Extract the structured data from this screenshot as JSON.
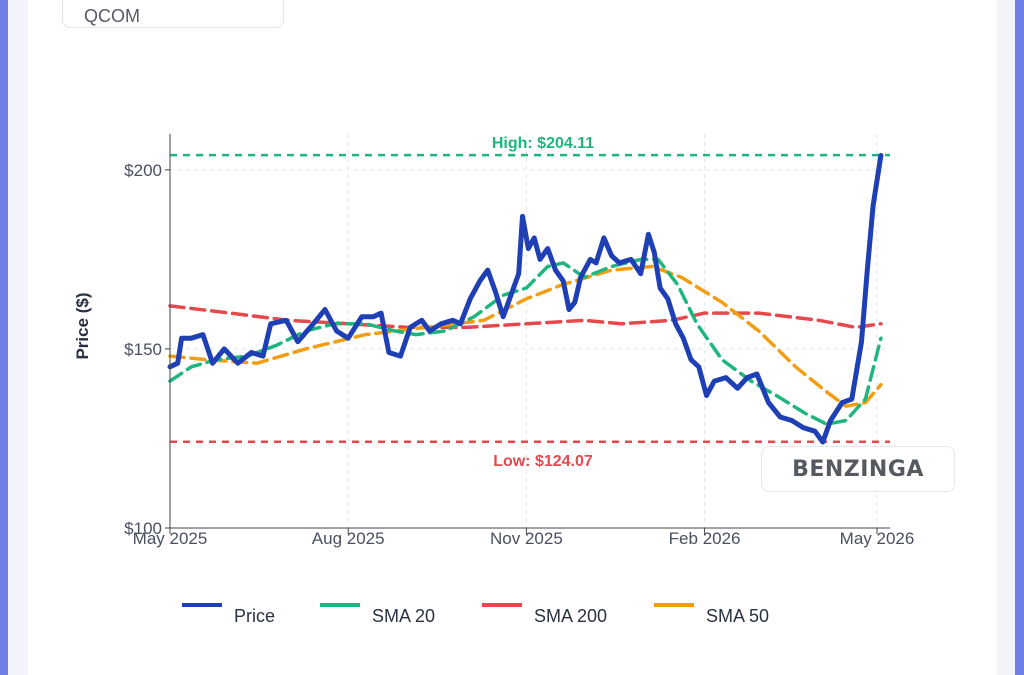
{
  "ticker": "QCOM",
  "watermark": "BENZINGA",
  "chart_data": {
    "type": "line",
    "title": "",
    "xlabel": "",
    "ylabel": "Price ($)",
    "x_start": "2025-05-01",
    "x_end": "2026-05-01",
    "ylim": [
      100,
      210
    ],
    "y_ticks": [
      100,
      150,
      200
    ],
    "y_tick_labels": [
      "$100",
      "$150",
      "$200"
    ],
    "x_ticks": [
      "2025-05-01",
      "2025-08-01",
      "2025-11-01",
      "2026-02-01",
      "2026-05-01"
    ],
    "x_tick_labels": [
      "May 2025",
      "Aug 2025",
      "Nov 2025",
      "Feb 2026",
      "May 2026"
    ],
    "grid": true,
    "legend_position": "bottom",
    "high": {
      "value": 204.11,
      "label": "High: $204.11",
      "color": "#1fb57f"
    },
    "low": {
      "value": 124.07,
      "label": "Low: $124.07",
      "color": "#e5484d"
    },
    "series": [
      {
        "name": "Price",
        "color": "#1f3fb4",
        "points": [
          [
            "2025-05-01",
            145
          ],
          [
            "2025-05-05",
            146
          ],
          [
            "2025-05-07",
            153
          ],
          [
            "2025-05-12",
            153
          ],
          [
            "2025-05-18",
            154
          ],
          [
            "2025-05-23",
            146
          ],
          [
            "2025-05-29",
            150
          ],
          [
            "2025-06-05",
            146
          ],
          [
            "2025-06-12",
            149
          ],
          [
            "2025-06-18",
            148
          ],
          [
            "2025-06-22",
            157
          ],
          [
            "2025-06-30",
            158
          ],
          [
            "2025-07-06",
            152
          ],
          [
            "2025-07-14",
            157
          ],
          [
            "2025-07-20",
            161
          ],
          [
            "2025-07-26",
            155
          ],
          [
            "2025-08-01",
            153
          ],
          [
            "2025-08-08",
            159
          ],
          [
            "2025-08-14",
            159
          ],
          [
            "2025-08-18",
            160
          ],
          [
            "2025-08-22",
            149
          ],
          [
            "2025-08-28",
            148
          ],
          [
            "2025-09-02",
            156
          ],
          [
            "2025-09-08",
            158
          ],
          [
            "2025-09-12",
            155
          ],
          [
            "2025-09-18",
            157
          ],
          [
            "2025-09-24",
            158
          ],
          [
            "2025-09-28",
            157
          ],
          [
            "2025-10-03",
            164
          ],
          [
            "2025-10-08",
            169
          ],
          [
            "2025-10-12",
            172
          ],
          [
            "2025-10-16",
            166
          ],
          [
            "2025-10-20",
            159
          ],
          [
            "2025-10-24",
            165
          ],
          [
            "2025-10-28",
            171
          ],
          [
            "2025-10-30",
            187
          ],
          [
            "2025-11-02",
            178
          ],
          [
            "2025-11-05",
            181
          ],
          [
            "2025-11-08",
            175
          ],
          [
            "2025-11-12",
            178
          ],
          [
            "2025-11-16",
            172
          ],
          [
            "2025-11-20",
            169
          ],
          [
            "2025-11-23",
            161
          ],
          [
            "2025-11-26",
            163
          ],
          [
            "2025-11-29",
            170
          ],
          [
            "2025-12-04",
            175
          ],
          [
            "2025-12-07",
            174
          ],
          [
            "2025-12-11",
            181
          ],
          [
            "2025-12-15",
            176
          ],
          [
            "2025-12-19",
            174
          ],
          [
            "2025-12-25",
            175
          ],
          [
            "2025-12-30",
            171
          ],
          [
            "2026-01-03",
            182
          ],
          [
            "2026-01-06",
            177
          ],
          [
            "2026-01-09",
            167
          ],
          [
            "2026-01-13",
            164
          ],
          [
            "2026-01-17",
            157
          ],
          [
            "2026-01-21",
            153
          ],
          [
            "2026-01-25",
            147
          ],
          [
            "2026-01-29",
            145
          ],
          [
            "2026-02-02",
            137
          ],
          [
            "2026-02-06",
            141
          ],
          [
            "2026-02-12",
            142
          ],
          [
            "2026-02-18",
            139
          ],
          [
            "2026-02-23",
            142
          ],
          [
            "2026-02-28",
            143
          ],
          [
            "2026-03-06",
            135
          ],
          [
            "2026-03-12",
            131
          ],
          [
            "2026-03-18",
            130
          ],
          [
            "2026-03-24",
            128
          ],
          [
            "2026-03-30",
            127
          ],
          [
            "2026-04-03",
            124
          ],
          [
            "2026-04-07",
            130
          ],
          [
            "2026-04-13",
            135
          ],
          [
            "2026-04-18",
            136
          ],
          [
            "2026-04-23",
            152
          ],
          [
            "2026-04-26",
            172
          ],
          [
            "2026-04-29",
            190
          ],
          [
            "2026-05-03",
            204
          ]
        ]
      },
      {
        "name": "SMA 20",
        "color": "#1fb57f",
        "points": [
          [
            "2025-05-01",
            141
          ],
          [
            "2025-05-12",
            145
          ],
          [
            "2025-05-25",
            147
          ],
          [
            "2025-06-10",
            148
          ],
          [
            "2025-06-25",
            151
          ],
          [
            "2025-07-10",
            155
          ],
          [
            "2025-07-25",
            157
          ],
          [
            "2025-08-10",
            157
          ],
          [
            "2025-08-25",
            155
          ],
          [
            "2025-09-05",
            154
          ],
          [
            "2025-09-20",
            155
          ],
          [
            "2025-10-05",
            159
          ],
          [
            "2025-10-20",
            165
          ],
          [
            "2025-11-01",
            167
          ],
          [
            "2025-11-12",
            173
          ],
          [
            "2025-11-20",
            174
          ],
          [
            "2025-12-01",
            170
          ],
          [
            "2025-12-15",
            173
          ],
          [
            "2025-12-30",
            175
          ],
          [
            "2026-01-08",
            175
          ],
          [
            "2026-01-18",
            168
          ],
          [
            "2026-01-28",
            157
          ],
          [
            "2026-02-10",
            147
          ],
          [
            "2026-02-25",
            141
          ],
          [
            "2026-03-10",
            137
          ],
          [
            "2026-03-25",
            132
          ],
          [
            "2026-04-05",
            129
          ],
          [
            "2026-04-15",
            130
          ],
          [
            "2026-04-25",
            136
          ],
          [
            "2026-05-03",
            153
          ]
        ]
      },
      {
        "name": "SMA 200",
        "color": "#e5484d",
        "points": [
          [
            "2025-05-01",
            162
          ],
          [
            "2025-06-01",
            160
          ],
          [
            "2025-07-01",
            158
          ],
          [
            "2025-08-01",
            157
          ],
          [
            "2025-09-01",
            156
          ],
          [
            "2025-10-01",
            156
          ],
          [
            "2025-11-01",
            157
          ],
          [
            "2025-12-01",
            158
          ],
          [
            "2025-12-20",
            157
          ],
          [
            "2026-01-15",
            158
          ],
          [
            "2026-02-01",
            160
          ],
          [
            "2026-03-01",
            160
          ],
          [
            "2026-04-01",
            158
          ],
          [
            "2026-04-20",
            156
          ],
          [
            "2026-05-03",
            157
          ]
        ]
      },
      {
        "name": "SMA 50",
        "color": "#f29d12",
        "points": [
          [
            "2025-05-01",
            148
          ],
          [
            "2025-05-20",
            147
          ],
          [
            "2025-06-15",
            146
          ],
          [
            "2025-07-10",
            150
          ],
          [
            "2025-08-10",
            154
          ],
          [
            "2025-09-10",
            156
          ],
          [
            "2025-10-10",
            158
          ],
          [
            "2025-11-01",
            164
          ],
          [
            "2025-11-20",
            168
          ],
          [
            "2025-12-15",
            172
          ],
          [
            "2026-01-05",
            173
          ],
          [
            "2026-01-20",
            170
          ],
          [
            "2026-02-10",
            163
          ],
          [
            "2026-03-01",
            155
          ],
          [
            "2026-03-20",
            145
          ],
          [
            "2026-04-05",
            138
          ],
          [
            "2026-04-15",
            134
          ],
          [
            "2026-04-25",
            135
          ],
          [
            "2026-05-03",
            140
          ]
        ]
      }
    ]
  }
}
